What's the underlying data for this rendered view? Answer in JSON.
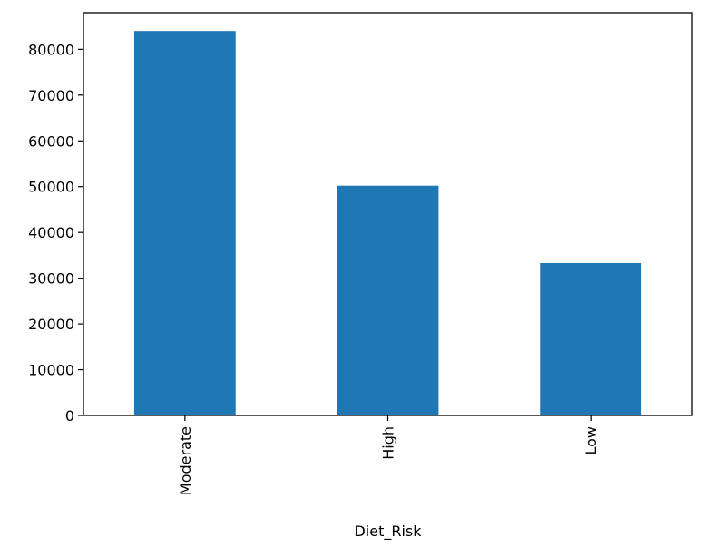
{
  "chart_data": {
    "type": "bar",
    "title": "",
    "xlabel": "Diet_Risk",
    "ylabel": "",
    "categories": [
      "Moderate",
      "High",
      "Low"
    ],
    "values": [
      84000,
      50200,
      33300
    ],
    "ylim": [
      0,
      88000
    ],
    "yticks": [
      0,
      10000,
      20000,
      30000,
      40000,
      50000,
      60000,
      70000,
      80000
    ],
    "ytick_labels": [
      "0",
      "10000",
      "20000",
      "30000",
      "40000",
      "50000",
      "60000",
      "70000",
      "80000"
    ],
    "grid": false,
    "legend": "none",
    "xtick_rotation": "vertical",
    "colors": {
      "bar": "#1f77b4",
      "axis": "#000000"
    }
  }
}
